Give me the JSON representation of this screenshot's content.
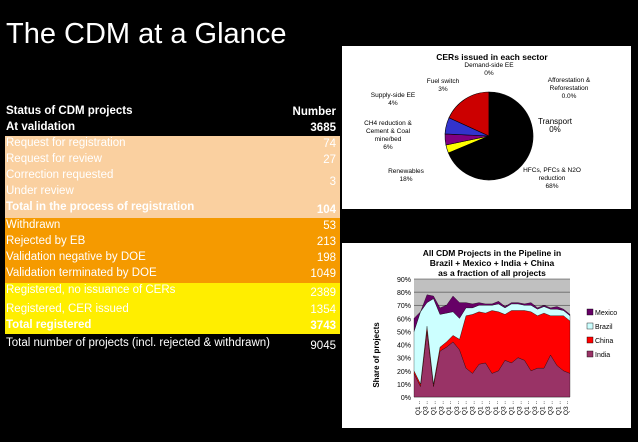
{
  "slide": {
    "title": "The CDM at a Glance"
  },
  "table": {
    "header_label": "Status of CDM projects",
    "header_value": "Number",
    "rows": [
      {
        "label": "At validation",
        "value": "3685"
      },
      {
        "label": "Request for registration",
        "value": "74"
      },
      {
        "label": "Request for review",
        "value": "27"
      },
      {
        "label": "Correction requested",
        "value": "3"
      },
      {
        "label": "Under review",
        "value": ""
      },
      {
        "label": "Total in the process of registration",
        "value": "104"
      },
      {
        "label": "Withdrawn",
        "value": "53"
      },
      {
        "label": "Rejected by EB",
        "value": "213"
      },
      {
        "label": "Validation negative by DOE",
        "value": "198"
      },
      {
        "label": "Validation terminated by DOE",
        "value": "1049"
      },
      {
        "label": "Registered, no issuance of CERs",
        "value": "2389"
      },
      {
        "label": "Registered, CER issued",
        "value": "1354"
      },
      {
        "label": "Total registered",
        "value": "3743"
      },
      {
        "label": "Total number of projects (incl. rejected & withdrawn)",
        "value": "9045"
      }
    ]
  },
  "chart_data": [
    {
      "type": "pie",
      "title": "CERs issued in each sector",
      "slices": [
        {
          "label": "Demand-side EE",
          "pct": "0%",
          "value": 0,
          "color": "#ff00ff"
        },
        {
          "label": "Fuel switch",
          "pct": "3%",
          "value": 3,
          "color": "#ffff00"
        },
        {
          "label": "Supply-side EE",
          "pct": "4%",
          "value": 4,
          "color": "#800080"
        },
        {
          "label": "CH4 reduction & Cement & Coal mine/bed",
          "pct": "6%",
          "value": 6,
          "color": "#3333cc"
        },
        {
          "label": "Renewables",
          "pct": "18%",
          "value": 18,
          "color": "#cc0000"
        },
        {
          "label": "HFCs, PFCs & N2O reduction",
          "pct": "68%",
          "value": 68,
          "color": "#000000"
        },
        {
          "label": "Transport",
          "pct": "0%",
          "value": 0,
          "color": "#00cccc"
        },
        {
          "label": "Afforestation & Reforestation",
          "pct": "0.0%",
          "value": 0,
          "color": "#999999"
        }
      ]
    },
    {
      "type": "area",
      "title_lines": [
        "All CDM Projects in the Pipeline in",
        "Brazil + Mexico + India + China",
        "as a fraction of all projects"
      ],
      "ylabel": "Share of projects",
      "ylim": [
        0,
        90
      ],
      "yticks": [
        "0%",
        "10%",
        "20%",
        "30%",
        "40%",
        "50%",
        "60%",
        "70%",
        "80%",
        "90%"
      ],
      "xticks": [
        "Q1",
        "Q3",
        "Q1",
        "Q3",
        "Q1",
        "Q3",
        "Q1",
        "Q3",
        "Q1",
        "Q3",
        "Q1",
        "Q3",
        "Q1",
        "Q3",
        "Q1",
        "Q3",
        "Q1",
        "Q3",
        "Q1",
        "Q3"
      ],
      "series": [
        {
          "name": "India",
          "color": "#993366",
          "values": [
            18,
            8,
            50,
            8,
            35,
            38,
            42,
            36,
            22,
            18,
            25,
            26,
            18,
            20,
            28,
            26,
            30,
            28,
            20,
            22,
            22,
            32,
            24,
            20,
            18
          ]
        },
        {
          "name": "China",
          "color": "#ff0000",
          "values": [
            2,
            2,
            4,
            2,
            3,
            4,
            5,
            8,
            40,
            45,
            40,
            38,
            48,
            45,
            35,
            40,
            36,
            38,
            45,
            40,
            42,
            30,
            38,
            42,
            40
          ]
        },
        {
          "name": "Brazil",
          "color": "#ccffff",
          "values": [
            30,
            55,
            18,
            65,
            25,
            22,
            18,
            16,
            6,
            5,
            5,
            6,
            4,
            6,
            5,
            5,
            5,
            4,
            5,
            5,
            5,
            5,
            5,
            4,
            4
          ]
        },
        {
          "name": "Mexico",
          "color": "#660066",
          "values": [
            10,
            0,
            6,
            2,
            5,
            6,
            12,
            12,
            4,
            3,
            2,
            1,
            1,
            2,
            1,
            1,
            1,
            1,
            2,
            1,
            1,
            1,
            2,
            1,
            1
          ]
        }
      ]
    }
  ]
}
